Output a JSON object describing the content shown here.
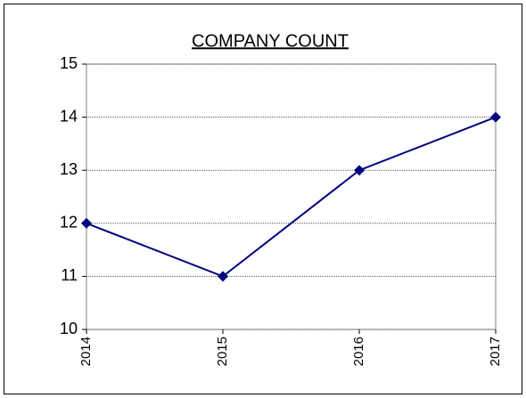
{
  "chart_data": {
    "type": "line",
    "title": "COMPANY COUNT",
    "categories": [
      "2014",
      "2015",
      "2016",
      "2017"
    ],
    "values": [
      12,
      11,
      13,
      14
    ],
    "color": "#000080",
    "ylim": [
      10,
      15
    ],
    "yticks": [
      10,
      11,
      12,
      13,
      14,
      15
    ],
    "grid": true
  }
}
